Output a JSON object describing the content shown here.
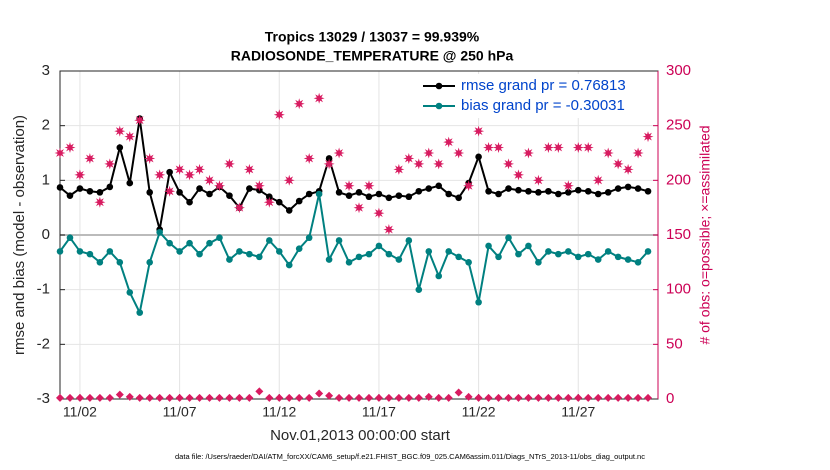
{
  "chart_data": {
    "type": "line",
    "title": "Tropics 13029 / 13037 = 99.939%",
    "subtitle": "RADIOSONDE_TEMPERATURE @ 250 hPa",
    "x_label": "Nov.01,2013 00:00:00 start",
    "y_label": "rmse and bias (model - observation)",
    "y2_label": "# of obs: o=possible; ×=assimilated",
    "footnote": "data file: /Users/raeder/DAI/ATM_forcXX/CAM6_setup/f.e21.FHIST_BGC.f09_025.CAM6assim.011/Diags_NTrS_2013-11/obs_diag_output.nc",
    "x": [
      0,
      0.5,
      1,
      1.5,
      2,
      2.5,
      3,
      3.5,
      4,
      4.5,
      5,
      5.5,
      6,
      6.5,
      7,
      7.5,
      8,
      8.5,
      9,
      9.5,
      10,
      10.5,
      11,
      11.5,
      12,
      12.5,
      13,
      13.5,
      14,
      14.5,
      15,
      15.5,
      16,
      16.5,
      17,
      17.5,
      18,
      18.5,
      19,
      19.5,
      20,
      20.5,
      21,
      21.5,
      22,
      22.5,
      23,
      23.5,
      24,
      24.5,
      25,
      25.5,
      26,
      26.5,
      27,
      27.5,
      28,
      28.5,
      29,
      29.5
    ],
    "xlim": [
      0,
      30
    ],
    "xticks": [
      {
        "value": 1,
        "label": "11/02"
      },
      {
        "value": 6,
        "label": "11/07"
      },
      {
        "value": 11,
        "label": "11/12"
      },
      {
        "value": 16,
        "label": "11/17"
      },
      {
        "value": 21,
        "label": "11/22"
      },
      {
        "value": 26,
        "label": "11/27"
      }
    ],
    "ylim": [
      -3,
      3
    ],
    "yticks": [
      -3,
      -2,
      -1,
      0,
      1,
      2,
      3
    ],
    "y2lim": [
      0,
      300
    ],
    "y2ticks": [
      0,
      50,
      100,
      150,
      200,
      250,
      300
    ],
    "y2_color": "#cc0055",
    "grid": true,
    "legend": "top-right",
    "legend_text_color": "#0044cc",
    "series": [
      {
        "name": "rmse grand pr = 0.76813",
        "color": "#000000",
        "marker": "dot",
        "values": [
          0.87,
          0.72,
          0.85,
          0.8,
          0.78,
          0.88,
          1.6,
          0.95,
          2.13,
          0.78,
          0.1,
          1.15,
          0.78,
          0.6,
          0.85,
          0.75,
          0.88,
          0.72,
          0.5,
          0.85,
          0.82,
          0.7,
          0.6,
          0.45,
          0.62,
          0.75,
          0.8,
          1.4,
          0.78,
          0.72,
          0.78,
          0.7,
          0.75,
          0.68,
          0.72,
          0.7,
          0.8,
          0.85,
          0.9,
          0.75,
          0.68,
          0.95,
          1.43,
          0.8,
          0.75,
          0.85,
          0.82,
          0.8,
          0.78,
          0.8,
          0.75,
          0.78,
          0.82,
          0.8,
          0.75,
          0.78,
          0.85,
          0.88,
          0.85,
          0.8
        ]
      },
      {
        "name": "bias grand pr = -0.30031",
        "color": "#008080",
        "marker": "dot",
        "values": [
          -0.3,
          -0.05,
          -0.3,
          -0.35,
          -0.5,
          -0.3,
          -0.5,
          -1.05,
          -1.42,
          -0.5,
          0.05,
          -0.15,
          -0.3,
          -0.15,
          -0.35,
          -0.15,
          -0.05,
          -0.45,
          -0.3,
          -0.35,
          -0.4,
          -0.1,
          -0.3,
          -0.55,
          -0.25,
          -0.05,
          0.75,
          -0.45,
          -0.1,
          -0.5,
          -0.4,
          -0.35,
          -0.2,
          -0.35,
          -0.45,
          -0.1,
          -1.0,
          -0.3,
          -0.75,
          -0.3,
          -0.4,
          -0.5,
          -1.23,
          -0.2,
          -0.4,
          -0.05,
          -0.35,
          -0.2,
          -0.5,
          -0.3,
          -0.35,
          -0.3,
          -0.4,
          -0.35,
          -0.45,
          -0.3,
          -0.4,
          -0.45,
          -0.5,
          -0.3
        ]
      },
      {
        "color": "#d81b60",
        "marker": "star",
        "axis": "y2",
        "values": [
          225,
          230,
          205,
          220,
          180,
          215,
          245,
          240,
          255,
          220,
          205,
          190,
          210,
          205,
          210,
          200,
          195,
          215,
          175,
          210,
          195,
          180,
          260,
          200,
          270,
          220,
          275,
          215,
          225,
          195,
          175,
          195,
          170,
          155,
          210,
          220,
          215,
          225,
          215,
          235,
          225,
          195,
          245,
          230,
          230,
          215,
          205,
          225,
          200,
          230,
          230,
          195,
          230,
          230,
          200,
          225,
          215,
          210,
          225,
          240
        ]
      },
      {
        "color": "#d81b60",
        "marker": "diamond",
        "axis": "y2",
        "values": [
          1,
          1,
          1,
          1,
          1,
          1,
          4,
          2,
          1,
          1,
          1,
          1,
          1,
          1,
          1,
          1,
          1,
          1,
          1,
          1,
          7,
          1,
          1,
          1,
          1,
          1,
          5,
          3,
          1,
          1,
          1,
          1,
          1,
          1,
          1,
          1,
          1,
          2,
          1,
          1,
          6,
          2,
          1,
          1,
          1,
          1,
          1,
          1,
          1,
          1,
          1,
          1,
          1,
          1,
          1,
          1,
          1,
          1,
          1,
          1
        ]
      }
    ]
  }
}
